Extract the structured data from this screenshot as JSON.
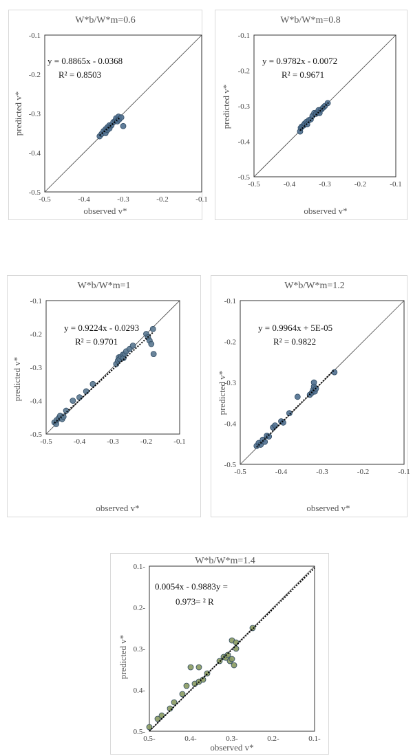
{
  "chart_data": [
    {
      "type": "scatter",
      "title": "W*b/W*m=0.6",
      "xlabel": "observed v*",
      "ylabel": "predicted v*",
      "xlim": [
        -0.5,
        -0.1
      ],
      "ylim": [
        -0.5,
        -0.1
      ],
      "x_ticks": [
        "-0.5",
        "-0.4",
        "-0.3",
        "-0.2",
        "-0.1"
      ],
      "y_ticks": [
        "-0.1",
        "-0.2",
        "-0.3",
        "-0.4",
        "-0.5"
      ],
      "equation": "y = 0.8865x - 0.0368",
      "r2": "R² = 0.8503",
      "trend": {
        "slope": 0.8865,
        "intercept": -0.0368,
        "x_range": [
          -0.36,
          -0.31
        ]
      },
      "identity_line": true,
      "grid": false,
      "point_color": "#4f6f8f",
      "points": [
        [
          -0.36,
          -0.358
        ],
        [
          -0.355,
          -0.352
        ],
        [
          -0.35,
          -0.345
        ],
        [
          -0.345,
          -0.35
        ],
        [
          -0.345,
          -0.34
        ],
        [
          -0.34,
          -0.342
        ],
        [
          -0.34,
          -0.335
        ],
        [
          -0.335,
          -0.338
        ],
        [
          -0.335,
          -0.33
        ],
        [
          -0.33,
          -0.33
        ],
        [
          -0.325,
          -0.322
        ],
        [
          -0.32,
          -0.318
        ],
        [
          -0.318,
          -0.312
        ],
        [
          -0.315,
          -0.32
        ],
        [
          -0.312,
          -0.308
        ],
        [
          -0.31,
          -0.315
        ],
        [
          -0.305,
          -0.31
        ],
        [
          -0.3,
          -0.332
        ]
      ]
    },
    {
      "type": "scatter",
      "title": "W*b/W*m=0.8",
      "xlabel": "observed v*",
      "ylabel": "predicted v*",
      "xlim": [
        -0.5,
        -0.1
      ],
      "ylim": [
        -0.5,
        -0.1
      ],
      "x_ticks": [
        "-0.5",
        "-0.4",
        "-0.3",
        "-0.2",
        "-0.1"
      ],
      "y_ticks": [
        "-0.1",
        "-0.2",
        "-0.3",
        "-0.4",
        "-0.5"
      ],
      "equation": "y = 0.9782x - 0.0072",
      "r2": "R² = 0.9671",
      "trend": {
        "slope": 0.9782,
        "intercept": -0.0072,
        "x_range": [
          -0.37,
          -0.29
        ]
      },
      "identity_line": true,
      "grid": false,
      "point_color": "#4f6f8f",
      "points": [
        [
          -0.37,
          -0.372
        ],
        [
          -0.368,
          -0.362
        ],
        [
          -0.365,
          -0.358
        ],
        [
          -0.36,
          -0.355
        ],
        [
          -0.357,
          -0.35
        ],
        [
          -0.352,
          -0.345
        ],
        [
          -0.35,
          -0.352
        ],
        [
          -0.345,
          -0.34
        ],
        [
          -0.34,
          -0.338
        ],
        [
          -0.335,
          -0.328
        ],
        [
          -0.33,
          -0.32
        ],
        [
          -0.325,
          -0.322
        ],
        [
          -0.32,
          -0.318
        ],
        [
          -0.318,
          -0.312
        ],
        [
          -0.315,
          -0.32
        ],
        [
          -0.31,
          -0.31
        ],
        [
          -0.305,
          -0.305
        ],
        [
          -0.3,
          -0.3
        ],
        [
          -0.292,
          -0.292
        ]
      ]
    },
    {
      "type": "scatter",
      "title": "W*b/W*m=1",
      "xlabel": "observed v*",
      "ylabel": "predicted v*",
      "xlim": [
        -0.5,
        -0.1
      ],
      "ylim": [
        -0.5,
        -0.1
      ],
      "x_ticks": [
        "-0.5",
        "-0.4",
        "-0.3",
        "-0.2",
        "-0.1"
      ],
      "y_ticks": [
        "-0.1",
        "-0.2",
        "-0.3",
        "-0.4",
        "-0.5"
      ],
      "equation": "y = 0.9224x - 0.0293",
      "r2": "R² = 0.9701",
      "trend": {
        "slope": 0.9224,
        "intercept": -0.0293,
        "x_range": [
          -0.475,
          -0.18
        ]
      },
      "identity_line": true,
      "grid": false,
      "point_color": "#5a7890",
      "points": [
        [
          -0.475,
          -0.465
        ],
        [
          -0.47,
          -0.47
        ],
        [
          -0.468,
          -0.458
        ],
        [
          -0.462,
          -0.452
        ],
        [
          -0.458,
          -0.445
        ],
        [
          -0.452,
          -0.455
        ],
        [
          -0.448,
          -0.448
        ],
        [
          -0.44,
          -0.43
        ],
        [
          -0.42,
          -0.4
        ],
        [
          -0.4,
          -0.39
        ],
        [
          -0.38,
          -0.372
        ],
        [
          -0.36,
          -0.35
        ],
        [
          -0.29,
          -0.29
        ],
        [
          -0.285,
          -0.28
        ],
        [
          -0.282,
          -0.27
        ],
        [
          -0.28,
          -0.275
        ],
        [
          -0.275,
          -0.268
        ],
        [
          -0.27,
          -0.262
        ],
        [
          -0.268,
          -0.272
        ],
        [
          -0.265,
          -0.26
        ],
        [
          -0.26,
          -0.252
        ],
        [
          -0.25,
          -0.245
        ],
        [
          -0.24,
          -0.235
        ],
        [
          -0.2,
          -0.2
        ],
        [
          -0.195,
          -0.21
        ],
        [
          -0.19,
          -0.22
        ],
        [
          -0.185,
          -0.23
        ],
        [
          -0.18,
          -0.185
        ],
        [
          -0.178,
          -0.26
        ]
      ]
    },
    {
      "type": "scatter",
      "title": "W*b/W*m=1.2",
      "xlabel": "observed v*",
      "ylabel": "predicted v*",
      "xlim": [
        -0.5,
        -0.1
      ],
      "ylim": [
        -0.5,
        -0.1
      ],
      "x_ticks": [
        "-0.5",
        "-0.4",
        "-0.3",
        "-0.2",
        "-0.1"
      ],
      "y_ticks": [
        "-0.1",
        "-0.2",
        "-0.3",
        "-0.4",
        "-0.5"
      ],
      "equation": "y = 0.9964x + 5E-05",
      "r2": "R² = 0.9822",
      "trend": {
        "slope": 0.9964,
        "intercept": 5e-05,
        "x_range": [
          -0.46,
          -0.27
        ]
      },
      "identity_line": true,
      "grid": false,
      "point_color": "#4f6f8f",
      "points": [
        [
          -0.46,
          -0.455
        ],
        [
          -0.455,
          -0.448
        ],
        [
          -0.45,
          -0.452
        ],
        [
          -0.445,
          -0.44
        ],
        [
          -0.44,
          -0.445
        ],
        [
          -0.435,
          -0.43
        ],
        [
          -0.43,
          -0.432
        ],
        [
          -0.42,
          -0.41
        ],
        [
          -0.415,
          -0.405
        ],
        [
          -0.4,
          -0.395
        ],
        [
          -0.395,
          -0.398
        ],
        [
          -0.38,
          -0.375
        ],
        [
          -0.36,
          -0.335
        ],
        [
          -0.33,
          -0.33
        ],
        [
          -0.325,
          -0.325
        ],
        [
          -0.322,
          -0.318
        ],
        [
          -0.32,
          -0.31
        ],
        [
          -0.32,
          -0.3
        ],
        [
          -0.318,
          -0.322
        ],
        [
          -0.315,
          -0.315
        ],
        [
          -0.27,
          -0.275
        ]
      ]
    },
    {
      "type": "scatter",
      "title": "W*b/W*m=1.4",
      "xlabel": "observed v*",
      "ylabel": "predicted v*",
      "xlim": [
        -0.5,
        -0.1
      ],
      "ylim": [
        -0.5,
        -0.1
      ],
      "x_ticks": [
        "0.5-",
        "0.4-",
        "0.3-",
        "0.2-",
        "0.1-"
      ],
      "y_ticks": [
        "0.1-",
        "0.2-",
        "0.3-",
        "0.4-",
        "0.5-"
      ],
      "equation": "0.0054x - 0.9883y =",
      "r2": "0.973= ² R",
      "trend": {
        "slope": 0.9883,
        "intercept": -0.0054,
        "x_range": [
          -0.5,
          -0.1
        ]
      },
      "identity_line": true,
      "grid": false,
      "point_color": "#8a9a60",
      "points": [
        [
          -0.5,
          -0.49
        ],
        [
          -0.48,
          -0.47
        ],
        [
          -0.47,
          -0.462
        ],
        [
          -0.45,
          -0.445
        ],
        [
          -0.44,
          -0.43
        ],
        [
          -0.42,
          -0.41
        ],
        [
          -0.41,
          -0.39
        ],
        [
          -0.4,
          -0.345
        ],
        [
          -0.38,
          -0.345
        ],
        [
          -0.39,
          -0.385
        ],
        [
          -0.38,
          -0.38
        ],
        [
          -0.37,
          -0.375
        ],
        [
          -0.36,
          -0.36
        ],
        [
          -0.33,
          -0.33
        ],
        [
          -0.32,
          -0.32
        ],
        [
          -0.315,
          -0.322
        ],
        [
          -0.31,
          -0.315
        ],
        [
          -0.305,
          -0.33
        ],
        [
          -0.3,
          -0.325
        ],
        [
          -0.3,
          -0.28
        ],
        [
          -0.295,
          -0.34
        ],
        [
          -0.29,
          -0.3
        ],
        [
          -0.29,
          -0.285
        ],
        [
          -0.25,
          -0.25
        ]
      ]
    }
  ]
}
